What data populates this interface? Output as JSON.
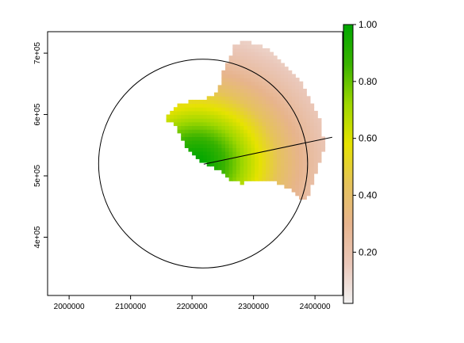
{
  "chart_data": {
    "type": "heatmap",
    "title": "",
    "xlabel": "",
    "ylabel": "",
    "xlim": [
      1965000,
      2445000
    ],
    "ylim": [
      305000,
      735000
    ],
    "x_ticks": [
      2000000,
      2100000,
      2200000,
      2300000,
      2400000
    ],
    "x_tick_labels": [
      "2000000",
      "2100000",
      "2200000",
      "2300000",
      "2400000"
    ],
    "y_ticks": [
      400000,
      500000,
      600000,
      700000
    ],
    "y_tick_labels": [
      "4e+05",
      "5e+05",
      "6e+05",
      "7e+05"
    ],
    "grid": false,
    "colorbar": {
      "placement": "right",
      "min": 0.02,
      "max": 1.0,
      "ticks": [
        1.0,
        0.8,
        0.6,
        0.4,
        0.2
      ],
      "tick_labels": [
        "1.00",
        "0.80",
        "0.60",
        "0.40",
        "0.20"
      ],
      "colors": [
        "#f2f2f2",
        "#eac7b9",
        "#e7b48d",
        "#e6c35a",
        "#e6e300",
        "#9ed700",
        "#39b300",
        "#00a600"
      ]
    },
    "circle": {
      "center": [
        2218000,
        520000
      ],
      "radius": 170000
    },
    "line_segment": {
      "from": [
        2219000,
        519000
      ],
      "to": [
        2428000,
        563000
      ]
    },
    "field": {
      "peak_center": [
        2207000,
        522000
      ],
      "cell_size": 6000,
      "polygon": [
        [
          2263000,
          712000
        ],
        [
          2290000,
          720000
        ],
        [
          2318000,
          710000
        ],
        [
          2350000,
          683000
        ],
        [
          2378000,
          650000
        ],
        [
          2398000,
          615000
        ],
        [
          2412000,
          578000
        ],
        [
          2415000,
          545000
        ],
        [
          2402000,
          508000
        ],
        [
          2392000,
          478000
        ],
        [
          2388000,
          462000
        ],
        [
          2373000,
          466000
        ],
        [
          2357000,
          480000
        ],
        [
          2335000,
          492000
        ],
        [
          2302000,
          494000
        ],
        [
          2283000,
          488000
        ],
        [
          2263000,
          492000
        ],
        [
          2242000,
          510000
        ],
        [
          2221000,
          521000
        ],
        [
          2205000,
          531000
        ],
        [
          2187000,
          554000
        ],
        [
          2178000,
          571000
        ],
        [
          2168000,
          588000
        ],
        [
          2157000,
          590000
        ],
        [
          2160000,
          602000
        ],
        [
          2176000,
          617000
        ],
        [
          2195000,
          622000
        ],
        [
          2212000,
          622000
        ],
        [
          2236000,
          632000
        ],
        [
          2248000,
          657000
        ],
        [
          2253000,
          680000
        ],
        [
          2266000,
          697000
        ]
      ]
    }
  }
}
